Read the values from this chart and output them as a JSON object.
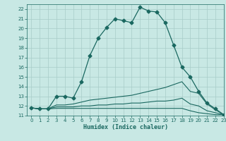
{
  "title": "",
  "xlabel": "Humidex (Indice chaleur)",
  "ylabel": "",
  "xlim": [
    -0.5,
    23
  ],
  "ylim": [
    11,
    22.5
  ],
  "yticks": [
    11,
    12,
    13,
    14,
    15,
    16,
    17,
    18,
    19,
    20,
    21,
    22
  ],
  "xticks": [
    0,
    1,
    2,
    3,
    4,
    5,
    6,
    7,
    8,
    9,
    10,
    11,
    12,
    13,
    14,
    15,
    16,
    17,
    18,
    19,
    20,
    21,
    22,
    23
  ],
  "bg_color": "#c8e8e4",
  "grid_color": "#a8ccc8",
  "line_color": "#1a6860",
  "series": [
    {
      "x": [
        0,
        1,
        2,
        3,
        4,
        5,
        6,
        7,
        8,
        9,
        10,
        11,
        12,
        13,
        14,
        15,
        16,
        17,
        18,
        19,
        20,
        21,
        22,
        23
      ],
      "y": [
        11.8,
        11.7,
        11.7,
        13.0,
        13.0,
        12.8,
        14.5,
        17.2,
        19.0,
        20.1,
        21.0,
        20.8,
        20.6,
        22.2,
        21.8,
        21.7,
        20.6,
        18.3,
        16.0,
        15.0,
        13.5,
        12.3,
        11.7,
        11.1
      ],
      "marker": "D",
      "ms": 2.5
    },
    {
      "x": [
        0,
        1,
        2,
        3,
        4,
        5,
        6,
        7,
        8,
        9,
        10,
        11,
        12,
        13,
        14,
        15,
        16,
        17,
        18,
        19,
        20,
        21,
        22,
        23
      ],
      "y": [
        11.8,
        11.7,
        11.7,
        12.1,
        12.1,
        12.2,
        12.4,
        12.6,
        12.7,
        12.8,
        12.9,
        13.0,
        13.1,
        13.3,
        13.5,
        13.7,
        13.9,
        14.2,
        14.5,
        13.5,
        13.3,
        12.2,
        11.6,
        11.1
      ],
      "marker": null,
      "ms": 0
    },
    {
      "x": [
        0,
        1,
        2,
        3,
        4,
        5,
        6,
        7,
        8,
        9,
        10,
        11,
        12,
        13,
        14,
        15,
        16,
        17,
        18,
        19,
        20,
        21,
        22,
        23
      ],
      "y": [
        11.8,
        11.7,
        11.7,
        11.9,
        11.9,
        11.9,
        12.0,
        12.0,
        12.1,
        12.1,
        12.2,
        12.2,
        12.3,
        12.3,
        12.4,
        12.5,
        12.5,
        12.6,
        12.8,
        12.2,
        12.0,
        11.5,
        11.3,
        11.1
      ],
      "marker": null,
      "ms": 0
    },
    {
      "x": [
        0,
        1,
        2,
        3,
        4,
        5,
        6,
        7,
        8,
        9,
        10,
        11,
        12,
        13,
        14,
        15,
        16,
        17,
        18,
        19,
        20,
        21,
        22,
        23
      ],
      "y": [
        11.8,
        11.7,
        11.7,
        11.75,
        11.75,
        11.75,
        11.75,
        11.75,
        11.75,
        11.75,
        11.75,
        11.75,
        11.75,
        11.75,
        11.75,
        11.75,
        11.75,
        11.75,
        11.75,
        11.5,
        11.3,
        11.2,
        11.1,
        11.1
      ],
      "marker": null,
      "ms": 0
    }
  ]
}
